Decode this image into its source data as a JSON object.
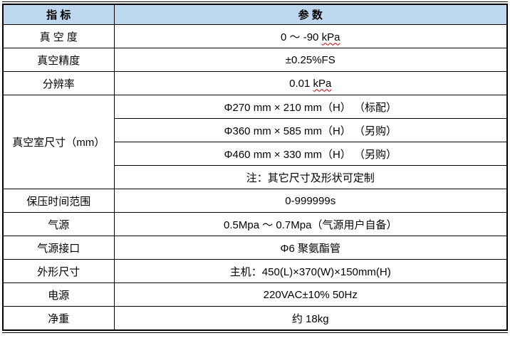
{
  "colors": {
    "header_background": "#BDD7EE",
    "border": "#000000",
    "text": "#000000",
    "spellcheck_squiggle": "#C00000"
  },
  "table": {
    "headers": [
      "指 标",
      "参 数"
    ],
    "rows": [
      {
        "label": "真 空 度",
        "value": "0 ～ -90 ",
        "value_wavy": "kPa"
      },
      {
        "label": "真空精度",
        "value": "±0.25%FS"
      },
      {
        "label": "分辨率",
        "value": "0.01 ",
        "value_wavy": "kPa"
      },
      {
        "label": "真空室尺寸（mm）",
        "value": "Φ270 mm × 210 mm（H） （标配）"
      },
      {
        "value": "Φ360 mm × 585 mm（H） （另购）"
      },
      {
        "value": "Φ460 mm × 330 mm（H） （另购）"
      },
      {
        "value": "注：其它尺寸及形状可定制"
      },
      {
        "label": "保压时间范围",
        "value": "0-999999s"
      },
      {
        "label": "气源",
        "value": "0.5Mpa ～ 0.7Mpa（气源用户自备）"
      },
      {
        "label": "气源接口",
        "value": "Φ6 聚氨酯管"
      },
      {
        "label": "外形尺寸",
        "value": "主机：450(L)×370(W)×150mm(H)"
      },
      {
        "label": "电源",
        "value": "220VAC±10% 50Hz"
      },
      {
        "label": "净重",
        "value": "约 18kg"
      }
    ]
  }
}
